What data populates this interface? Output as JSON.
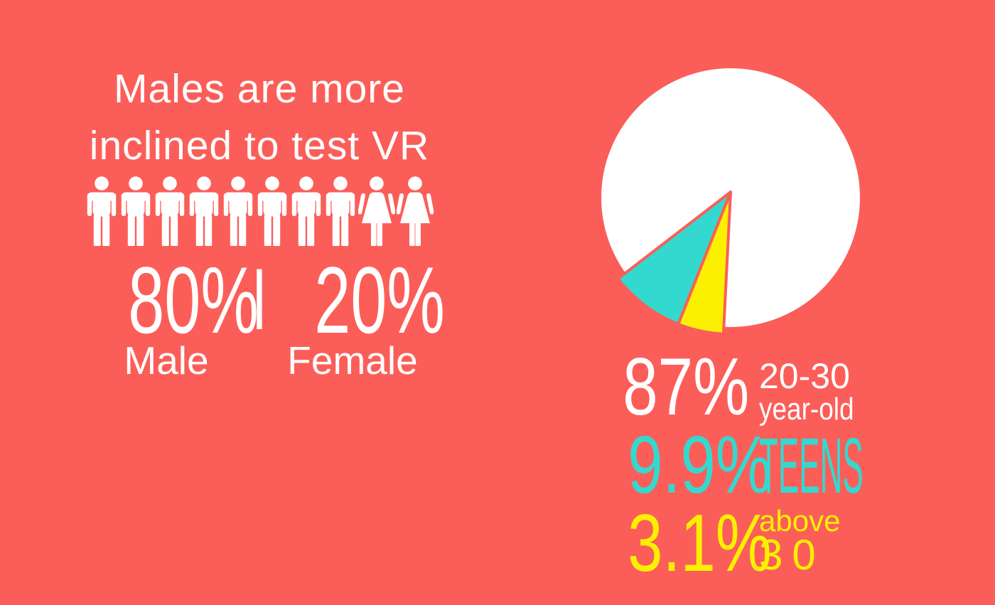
{
  "colors": {
    "background": "#FB5E59",
    "white": "#FFFFFF",
    "teal": "#33D9CF",
    "yellow": "#FBF000"
  },
  "gender_section": {
    "title_line1": "Males are more",
    "title_line2": "inclined to test VR",
    "male_value": "80%",
    "divider": "|",
    "female_value": "20%",
    "male_label": "Male",
    "female_label": "Female"
  },
  "age_section": {
    "stats": [
      {
        "value": "87%",
        "label_line1": "20-30",
        "label_line2": "year-old"
      },
      {
        "value": "9.9%",
        "label": "TEENS"
      },
      {
        "value": "3.1%",
        "label_line1": "above",
        "label_line2": "30"
      }
    ]
  },
  "chart_data": [
    {
      "type": "pictogram",
      "title": "Males are more inclined to test VR",
      "categories": [
        "Male",
        "Female"
      ],
      "values": [
        80,
        20
      ],
      "unit": "%",
      "icons": {
        "male": 8,
        "female": 2,
        "total": 10
      }
    },
    {
      "type": "pie",
      "categories": [
        "20-30 year-old",
        "Teens",
        "Above 30"
      ],
      "values": [
        87,
        9.9,
        3.1
      ],
      "unit": "%",
      "slice_colors": [
        "#FFFFFF",
        "#33D9CF",
        "#FBF000"
      ],
      "legend_position": "below-right",
      "layout": {
        "note": "minor slices drawn exploded slightly beyond circle edge, pointing down-left",
        "circle_radius": 182,
        "slice_radius": 200,
        "slices": [
          {
            "index": 1,
            "start_deg": 111.6,
            "end_deg": 142.4
          },
          {
            "index": 2,
            "start_deg": 92.9,
            "end_deg": 111.6
          }
        ]
      }
    }
  ]
}
